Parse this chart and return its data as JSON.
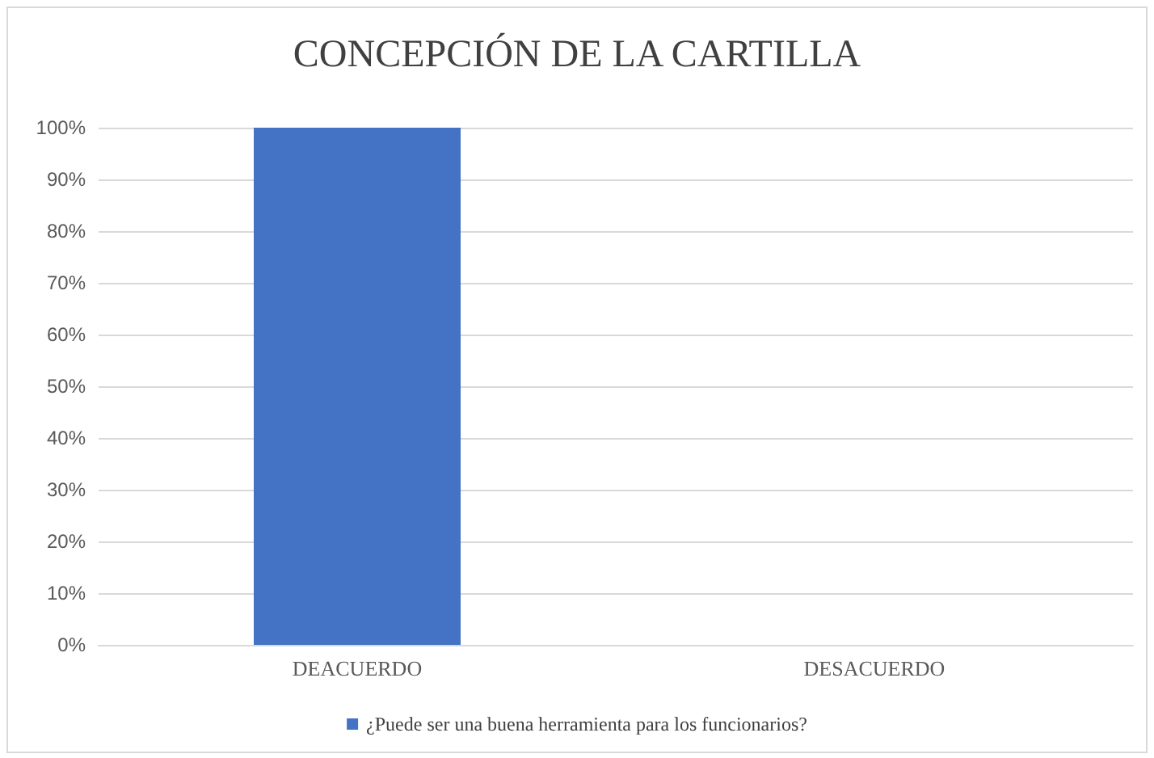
{
  "chart_data": {
    "type": "bar",
    "title": "CONCEPCIÓN DE LA CARTILLA",
    "categories": [
      "DEACUERDO",
      "DESACUERDO"
    ],
    "series": [
      {
        "name": "¿Puede ser una buena herramienta para los funcionarios?",
        "color": "#4472c4",
        "values": [
          100,
          0
        ]
      }
    ],
    "ylim": [
      0,
      100
    ],
    "yticks": [
      {
        "value": 0,
        "label": "0%"
      },
      {
        "value": 10,
        "label": "10%"
      },
      {
        "value": 20,
        "label": "20%"
      },
      {
        "value": 30,
        "label": "30%"
      },
      {
        "value": 40,
        "label": "40%"
      },
      {
        "value": 50,
        "label": "50%"
      },
      {
        "value": 60,
        "label": "60%"
      },
      {
        "value": 70,
        "label": "70%"
      },
      {
        "value": 80,
        "label": "80%"
      },
      {
        "value": 90,
        "label": "90%"
      },
      {
        "value": 100,
        "label": "100%"
      }
    ],
    "grid": "y",
    "legend": "bottom"
  }
}
